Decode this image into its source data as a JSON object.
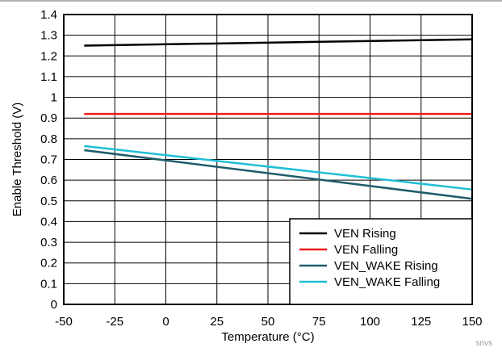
{
  "chart_data": {
    "type": "line",
    "title": "",
    "xlabel": "Temperature (°C)",
    "ylabel": "Enable Threshold (V)",
    "xlim": [
      -50,
      150
    ],
    "ylim": [
      0,
      1.4
    ],
    "x_ticks": [
      "-50",
      "-25",
      "0",
      "25",
      "50",
      "75",
      "100",
      "125",
      "150"
    ],
    "y_ticks": [
      "0",
      "0.1",
      "0.2",
      "0.3",
      "0.4",
      "0.5",
      "0.6",
      "0.7",
      "0.8",
      "0.9",
      "1",
      "1.1",
      "1.2",
      "1.3",
      "1.4"
    ],
    "grid": true,
    "legend_position": "bottom-right",
    "series": [
      {
        "name": "VEN Rising",
        "color": "#000000",
        "x": [
          -40,
          150
        ],
        "y": [
          1.25,
          1.28
        ]
      },
      {
        "name": "VEN Falling",
        "color": "#ee1c1c",
        "x": [
          -40,
          150
        ],
        "y": [
          0.92,
          0.92
        ]
      },
      {
        "name": "VEN_WAKE Rising",
        "color": "#1f5c6b",
        "x": [
          -40,
          150
        ],
        "y": [
          0.745,
          0.51
        ]
      },
      {
        "name": "VEN_WAKE Falling",
        "color": "#1fbfd6",
        "x": [
          -40,
          150
        ],
        "y": [
          0.765,
          0.555
        ]
      }
    ]
  },
  "watermark": "snvs"
}
